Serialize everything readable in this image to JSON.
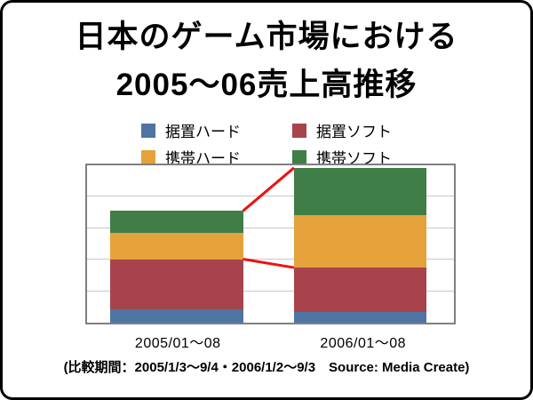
{
  "slide": {
    "title_line1": "日本のゲーム市場における",
    "title_line2": "2005〜06売上高推移",
    "footnote": "(比較期間：2005/1/3〜9/4・2006/1/2〜9/3　Source: Media Create)"
  },
  "colors": {
    "background": "#ffffff",
    "slide_border": "#000000",
    "plot_border": "#7f7f7f",
    "gridline": "#c9c9c9",
    "connector_red": "#ee1111"
  },
  "chart_data": {
    "type": "bar",
    "stacked": true,
    "title": "日本のゲーム市場における2005〜06売上高推移",
    "categories": [
      "2005/01〜08",
      "2006/01〜08"
    ],
    "series": [
      {
        "name": "据置ハード",
        "slug": "console-hardware",
        "color": "#4e74a4",
        "values": [
          0.42,
          0.33
        ]
      },
      {
        "name": "据置ソフト",
        "slug": "console-software",
        "color": "#a8434b",
        "values": [
          1.6,
          1.42
        ]
      },
      {
        "name": "携帯ハード",
        "slug": "portable-hardware",
        "color": "#e5a23b",
        "values": [
          0.83,
          1.67
        ]
      },
      {
        "name": "携帯ソフト",
        "slug": "portable-software",
        "color": "#3f7e46",
        "values": [
          0.7,
          1.5
        ]
      }
    ],
    "totals": [
      3.55,
      4.92
    ],
    "ylim": [
      0,
      5
    ],
    "gridline_interval": 1,
    "y_tick_labels_visible": false,
    "value_unit_note": "no y-axis labels shown; values measured in gridline intervals",
    "legend_position": "top",
    "legend_rows": 2,
    "connectors": [
      "total",
      "据置ソフト"
    ]
  }
}
